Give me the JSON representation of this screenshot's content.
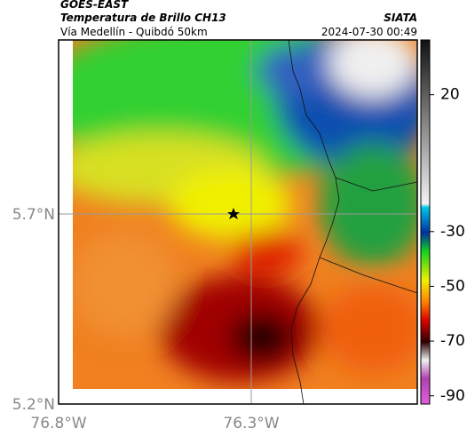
{
  "header": {
    "title": "GOES-EAST",
    "subtitle": "Temperatura de Brillo CH13",
    "source": "SIATA",
    "region": "Vía Medellín - Quibdó 50km",
    "datetime": "2024-07-30 00:49"
  },
  "map": {
    "lat_ticks": [
      "5.7°N",
      "5.2°N"
    ],
    "lon_ticks": [
      "76.8°W",
      "76.3°W"
    ]
  },
  "colorbar": {
    "lim": [
      -93,
      40
    ],
    "ticks": [
      20,
      -30,
      -50,
      -70,
      -90
    ]
  }
}
